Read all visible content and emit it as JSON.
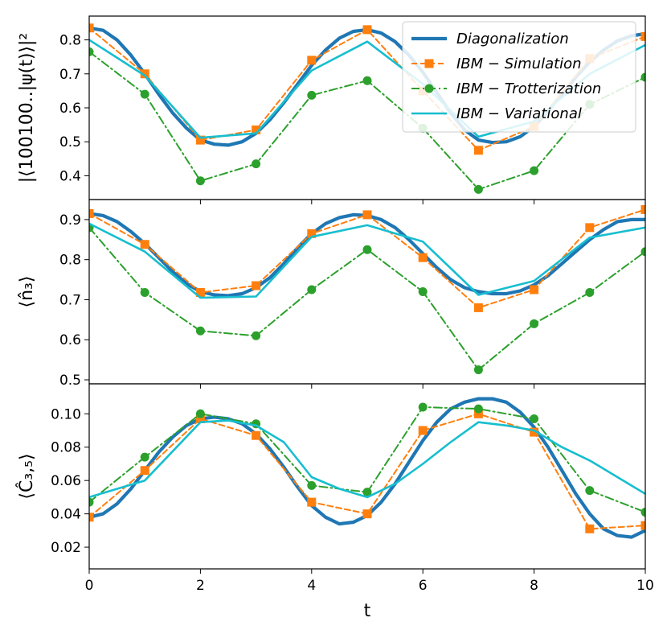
{
  "chart_data": [
    {
      "type": "line",
      "ylabel": "|⟨100100..|ψ(t)⟩|²",
      "xlabel": "",
      "xlim": [
        0,
        10
      ],
      "ylim": [
        0.33,
        0.87
      ],
      "yticks": [
        0.4,
        0.5,
        0.6,
        0.7,
        0.8
      ],
      "ytick_labels": [
        "0.4",
        "0.5",
        "0.6",
        "0.7",
        "0.8"
      ],
      "legend_position": "top-right",
      "series": [
        {
          "name": "Diagonalization",
          "style": "solid-thick",
          "color": "#1f77b4",
          "x": [
            0,
            0.25,
            0.5,
            0.75,
            1,
            1.25,
            1.5,
            1.75,
            2,
            2.25,
            2.5,
            2.75,
            3,
            3.25,
            3.5,
            3.75,
            4,
            4.25,
            4.5,
            4.75,
            5,
            5.25,
            5.5,
            5.75,
            6,
            6.25,
            6.5,
            6.75,
            7,
            7.25,
            7.5,
            7.75,
            8,
            8.25,
            8.5,
            8.75,
            9,
            9.25,
            9.5,
            9.75,
            10
          ],
          "y": [
            0.835,
            0.828,
            0.8,
            0.755,
            0.7,
            0.64,
            0.585,
            0.54,
            0.505,
            0.493,
            0.49,
            0.5,
            0.525,
            0.565,
            0.615,
            0.67,
            0.725,
            0.77,
            0.805,
            0.825,
            0.83,
            0.82,
            0.795,
            0.755,
            0.705,
            0.645,
            0.585,
            0.535,
            0.505,
            0.498,
            0.5,
            0.515,
            0.545,
            0.59,
            0.64,
            0.69,
            0.735,
            0.77,
            0.797,
            0.812,
            0.818
          ]
        },
        {
          "name": "IBM − Simulation",
          "style": "dashed-square",
          "color": "#ff7f0e",
          "x": [
            0,
            1,
            2,
            3,
            4,
            5,
            6,
            7,
            8,
            9,
            10
          ],
          "y": [
            0.835,
            0.7,
            0.505,
            0.535,
            0.74,
            0.83,
            0.65,
            0.475,
            0.545,
            0.745,
            0.81
          ]
        },
        {
          "name": "IBM − Trotterization",
          "style": "dashdot-circle",
          "color": "#2ca02c",
          "x": [
            0,
            1,
            2,
            3,
            4,
            5,
            6,
            7,
            8,
            9,
            10
          ],
          "y": [
            0.765,
            0.64,
            0.385,
            0.435,
            0.637,
            0.68,
            0.54,
            0.36,
            0.415,
            0.61,
            0.69
          ]
        },
        {
          "name": "IBM − Variational",
          "style": "solid",
          "color": "#17becf",
          "x": [
            0,
            1,
            2,
            3,
            4,
            5,
            6,
            7,
            8,
            9,
            10
          ],
          "y": [
            0.8,
            0.695,
            0.512,
            0.525,
            0.71,
            0.795,
            0.67,
            0.515,
            0.56,
            0.7,
            0.785
          ]
        }
      ]
    },
    {
      "type": "line",
      "ylabel": "⟨n̂₃⟩",
      "xlabel": "",
      "xlim": [
        0,
        10
      ],
      "ylim": [
        0.49,
        0.95
      ],
      "yticks": [
        0.5,
        0.6,
        0.7,
        0.8,
        0.9
      ],
      "ytick_labels": [
        "0.5",
        "0.6",
        "0.7",
        "0.8",
        "0.9"
      ],
      "series": [
        {
          "name": "Diagonalization",
          "style": "solid-thick",
          "color": "#1f77b4",
          "x": [
            0,
            0.25,
            0.5,
            0.75,
            1,
            1.25,
            1.5,
            1.75,
            2,
            2.25,
            2.5,
            2.75,
            3,
            3.25,
            3.5,
            3.75,
            4,
            4.25,
            4.5,
            4.75,
            5,
            5.25,
            5.5,
            5.75,
            6,
            6.25,
            6.5,
            6.75,
            7,
            7.25,
            7.5,
            7.75,
            8,
            8.25,
            8.5,
            8.75,
            9,
            9.25,
            9.5,
            9.75,
            10
          ],
          "y": [
            0.915,
            0.91,
            0.895,
            0.87,
            0.84,
            0.805,
            0.77,
            0.74,
            0.72,
            0.712,
            0.71,
            0.715,
            0.73,
            0.755,
            0.79,
            0.83,
            0.865,
            0.89,
            0.905,
            0.912,
            0.91,
            0.9,
            0.88,
            0.85,
            0.815,
            0.78,
            0.75,
            0.73,
            0.72,
            0.715,
            0.715,
            0.722,
            0.737,
            0.76,
            0.79,
            0.82,
            0.85,
            0.875,
            0.895,
            0.9,
            0.9
          ]
        },
        {
          "name": "IBM − Simulation",
          "style": "dashed-square",
          "color": "#ff7f0e",
          "x": [
            0,
            1,
            2,
            3,
            4,
            5,
            6,
            7,
            8,
            9,
            10
          ],
          "y": [
            0.915,
            0.838,
            0.718,
            0.735,
            0.865,
            0.912,
            0.805,
            0.68,
            0.725,
            0.88,
            0.925
          ]
        },
        {
          "name": "IBM − Trotterization",
          "style": "dashdot-circle",
          "color": "#2ca02c",
          "x": [
            0,
            1,
            2,
            3,
            4,
            5,
            6,
            7,
            8,
            9,
            10
          ],
          "y": [
            0.88,
            0.718,
            0.622,
            0.61,
            0.725,
            0.825,
            0.72,
            0.525,
            0.64,
            0.718,
            0.82
          ]
        },
        {
          "name": "IBM − Variational",
          "style": "solid",
          "color": "#17becf",
          "x": [
            0,
            1,
            2,
            3,
            4,
            5,
            6,
            7,
            8,
            9,
            10
          ],
          "y": [
            0.89,
            0.82,
            0.705,
            0.708,
            0.857,
            0.886,
            0.845,
            0.712,
            0.747,
            0.855,
            0.88
          ]
        }
      ]
    },
    {
      "type": "line",
      "ylabel": "⟨Ĉ₃,₅⟩",
      "xlabel": "t",
      "xlim": [
        0,
        10
      ],
      "ylim": [
        0.007,
        0.118
      ],
      "yticks": [
        0.02,
        0.04,
        0.06,
        0.08,
        0.1
      ],
      "ytick_labels": [
        "0.02",
        "0.04",
        "0.06",
        "0.08",
        "0.10"
      ],
      "xticks": [
        0,
        2,
        4,
        6,
        8,
        10
      ],
      "xtick_labels": [
        "0",
        "2",
        "4",
        "6",
        "8",
        "10"
      ],
      "series": [
        {
          "name": "Diagonalization",
          "style": "solid-thick",
          "color": "#1f77b4",
          "x": [
            0,
            0.25,
            0.5,
            0.75,
            1,
            1.25,
            1.5,
            1.75,
            2,
            2.25,
            2.5,
            2.75,
            3,
            3.25,
            3.5,
            3.75,
            4,
            4.25,
            4.5,
            4.75,
            5,
            5.25,
            5.5,
            5.75,
            6,
            6.25,
            6.5,
            6.75,
            7,
            7.25,
            7.5,
            7.75,
            8,
            8.25,
            8.5,
            8.75,
            9,
            9.25,
            9.5,
            9.75,
            10
          ],
          "y": [
            0.038,
            0.04,
            0.046,
            0.055,
            0.066,
            0.077,
            0.086,
            0.093,
            0.097,
            0.098,
            0.097,
            0.094,
            0.088,
            0.079,
            0.068,
            0.056,
            0.045,
            0.038,
            0.034,
            0.035,
            0.039,
            0.047,
            0.058,
            0.071,
            0.084,
            0.095,
            0.103,
            0.107,
            0.109,
            0.109,
            0.107,
            0.101,
            0.092,
            0.08,
            0.066,
            0.052,
            0.04,
            0.031,
            0.027,
            0.026,
            0.03
          ]
        },
        {
          "name": "IBM − Simulation",
          "style": "dashed-square",
          "color": "#ff7f0e",
          "x": [
            0,
            1,
            2,
            3,
            4,
            5,
            6,
            7,
            8,
            9,
            10
          ],
          "y": [
            0.038,
            0.066,
            0.097,
            0.087,
            0.047,
            0.04,
            0.09,
            0.1,
            0.089,
            0.031,
            0.033
          ]
        },
        {
          "name": "IBM − Trotterization",
          "style": "dashdot-circle",
          "color": "#2ca02c",
          "x": [
            0,
            1,
            2,
            3,
            4,
            5,
            6,
            7,
            8,
            9,
            10
          ],
          "y": [
            0.047,
            0.074,
            0.1,
            0.094,
            0.057,
            0.053,
            0.104,
            0.103,
            0.097,
            0.054,
            0.041
          ]
        },
        {
          "name": "IBM − Variational",
          "style": "solid",
          "color": "#17becf",
          "x": [
            0,
            1,
            2,
            2.5,
            3,
            3.5,
            4,
            4.5,
            5,
            5.5,
            6,
            6.5,
            7,
            7.5,
            8,
            8.5,
            9,
            9.5,
            10
          ],
          "y": [
            0.05,
            0.06,
            0.095,
            0.096,
            0.093,
            0.083,
            0.062,
            0.055,
            0.05,
            0.058,
            0.07,
            0.083,
            0.095,
            0.093,
            0.09,
            0.08,
            0.072,
            0.062,
            0.052
          ]
        }
      ]
    }
  ],
  "legend": {
    "entries": [
      "Diagonalization",
      "IBM − Simulation",
      "IBM − Trotterization",
      "IBM − Variational"
    ]
  },
  "colors": {
    "diagonalization": "#1f77b4",
    "simulation": "#ff7f0e",
    "trotterization": "#2ca02c",
    "variational": "#17becf"
  }
}
